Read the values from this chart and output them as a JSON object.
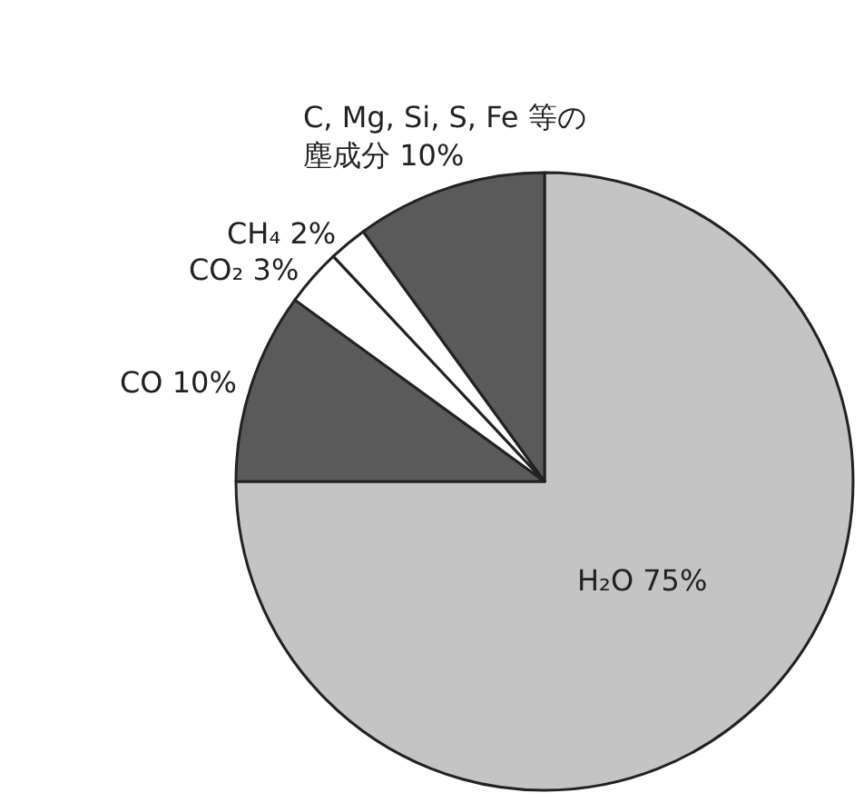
{
  "chart_data": {
    "type": "pie",
    "categories": [
      "H₂O",
      "CO",
      "CO₂",
      "CH₄",
      "C, Mg, Si, S, Fe 等の塵成分"
    ],
    "values": [
      75,
      10,
      3,
      2,
      10
    ],
    "value_labels": [
      "75%",
      "10%",
      "3%",
      "2%",
      "10%"
    ],
    "colors": [
      "#c4c4c4",
      "#5a5a5a",
      "#ffffff",
      "#ffffff",
      "#5a5a5a"
    ],
    "legend": false
  }
}
